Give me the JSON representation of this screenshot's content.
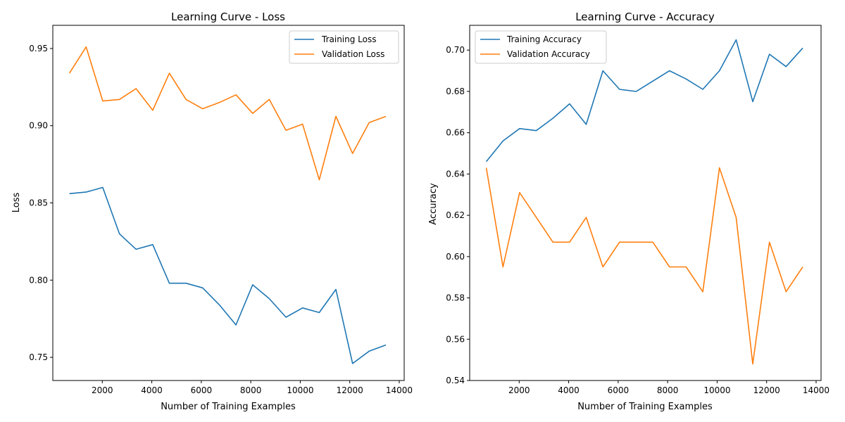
{
  "chart_data": [
    {
      "type": "line",
      "title": "Learning Curve - Loss",
      "xlabel": "Number of Training Examples",
      "ylabel": "Loss",
      "xlim": [
        0,
        14200
      ],
      "ylim": [
        0.735,
        0.965
      ],
      "xticks": [
        2000,
        4000,
        6000,
        8000,
        10000,
        12000,
        14000
      ],
      "yticks": [
        0.75,
        0.8,
        0.85,
        0.9,
        0.95
      ],
      "ytick_format": 2,
      "grid": false,
      "legend_position": "upper right",
      "x": [
        673,
        1346,
        2019,
        2692,
        3365,
        4038,
        4711,
        5384,
        6057,
        6730,
        7403,
        8076,
        8749,
        9422,
        10095,
        10768,
        11441,
        12114,
        12787,
        13460
      ],
      "series": [
        {
          "name": "Training Loss",
          "color": "#1f77b4",
          "values": [
            0.856,
            0.857,
            0.86,
            0.83,
            0.82,
            0.823,
            0.798,
            0.798,
            0.795,
            0.784,
            0.771,
            0.797,
            0.788,
            0.776,
            0.782,
            0.779,
            0.794,
            0.746,
            0.754,
            0.758
          ]
        },
        {
          "name": "Validation Loss",
          "color": "#ff7f0e",
          "values": [
            0.934,
            0.951,
            0.916,
            0.917,
            0.924,
            0.91,
            0.934,
            0.917,
            0.911,
            0.915,
            0.92,
            0.908,
            0.917,
            0.897,
            0.901,
            0.865,
            0.906,
            0.882,
            0.902,
            0.906
          ]
        }
      ]
    },
    {
      "type": "line",
      "title": "Learning Curve - Accuracy",
      "xlabel": "Number of Training Examples",
      "ylabel": "Accuracy",
      "xlim": [
        0,
        14200
      ],
      "ylim": [
        0.54,
        0.712
      ],
      "xticks": [
        2000,
        4000,
        6000,
        8000,
        10000,
        12000,
        14000
      ],
      "yticks": [
        0.54,
        0.56,
        0.58,
        0.6,
        0.62,
        0.64,
        0.66,
        0.68,
        0.7
      ],
      "ytick_format": 2,
      "grid": false,
      "legend_position": "upper left",
      "x": [
        673,
        1346,
        2019,
        2692,
        3365,
        4038,
        4711,
        5384,
        6057,
        6730,
        7403,
        8076,
        8749,
        9422,
        10095,
        10768,
        11441,
        12114,
        12787,
        13460
      ],
      "series": [
        {
          "name": "Training Accuracy",
          "color": "#1f77b4",
          "values": [
            0.646,
            0.656,
            0.662,
            0.661,
            0.667,
            0.674,
            0.664,
            0.69,
            0.681,
            0.68,
            0.685,
            0.69,
            0.686,
            0.681,
            0.69,
            0.705,
            0.675,
            0.698,
            0.692,
            0.701
          ]
        },
        {
          "name": "Validation Accuracy",
          "color": "#ff7f0e",
          "values": [
            0.643,
            0.595,
            0.631,
            0.619,
            0.607,
            0.607,
            0.619,
            0.595,
            0.607,
            0.607,
            0.607,
            0.595,
            0.595,
            0.583,
            0.643,
            0.619,
            0.548,
            0.607,
            0.583,
            0.595
          ]
        }
      ]
    }
  ]
}
